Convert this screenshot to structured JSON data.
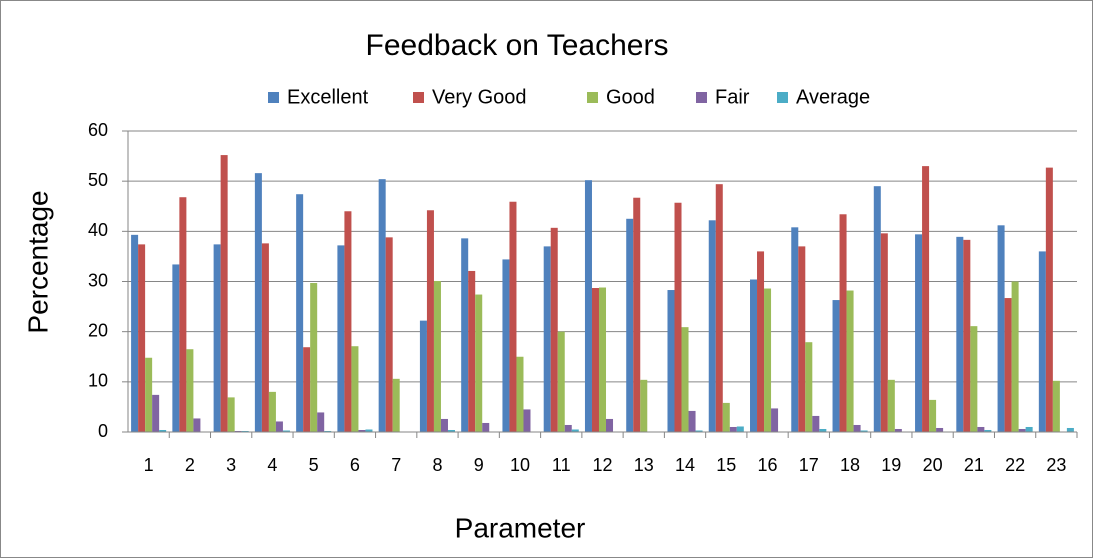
{
  "chart_data": {
    "type": "bar",
    "title": "Feedback  on Teachers",
    "x_label": "Parameter",
    "y_label": "Percentage",
    "categories": [
      "1",
      "2",
      "3",
      "4",
      "5",
      "6",
      "7",
      "8",
      "9",
      "10",
      "11",
      "12",
      "13",
      "14",
      "15",
      "16",
      "17",
      "18",
      "19",
      "20",
      "21",
      "22",
      "23"
    ],
    "series": [
      {
        "name": "Excellent",
        "color": "#4f81bd",
        "values": [
          39.3,
          33.4,
          37.4,
          51.6,
          47.4,
          37.2,
          50.4,
          22.2,
          38.6,
          34.4,
          37.0,
          50.2,
          42.5,
          28.3,
          42.2,
          30.4,
          40.8,
          26.3,
          49.0,
          39.4,
          38.9,
          41.2,
          36.0
        ]
      },
      {
        "name": "Very Good",
        "color": "#c0504d",
        "values": [
          37.4,
          46.8,
          55.2,
          37.6,
          16.9,
          44.0,
          38.8,
          44.2,
          32.1,
          45.9,
          40.7,
          28.7,
          46.7,
          45.7,
          49.4,
          36.0,
          37.0,
          43.4,
          39.6,
          53.0,
          38.3,
          26.7,
          52.7
        ]
      },
      {
        "name": "Good",
        "color": "#9bbb59",
        "values": [
          14.8,
          16.5,
          6.9,
          8.0,
          29.7,
          17.1,
          10.6,
          30.1,
          27.4,
          15.0,
          20.0,
          28.8,
          10.4,
          20.9,
          5.8,
          28.6,
          17.9,
          28.2,
          10.4,
          6.4,
          21.1,
          30.0,
          10.2
        ]
      },
      {
        "name": "Fair",
        "color": "#8064a2",
        "values": [
          7.4,
          2.7,
          0.2,
          2.1,
          3.9,
          0.4,
          0,
          2.6,
          1.8,
          4.5,
          1.4,
          2.6,
          0,
          4.2,
          1.0,
          4.7,
          3.2,
          1.4,
          0.6,
          0.8,
          1.0,
          0.6,
          0
        ]
      },
      {
        "name": "Average",
        "color": "#4bacc6",
        "values": [
          0.4,
          0,
          0.2,
          0.3,
          0.2,
          0.5,
          0,
          0.4,
          0,
          0,
          0.5,
          0,
          0,
          0.3,
          1.1,
          0,
          0.6,
          0.3,
          0,
          0,
          0.4,
          1.0,
          0.8
        ]
      }
    ],
    "ylim": [
      0,
      60
    ],
    "yticks": [
      0,
      10,
      20,
      30,
      40,
      50,
      60
    ],
    "grid": true,
    "legend": "top"
  }
}
